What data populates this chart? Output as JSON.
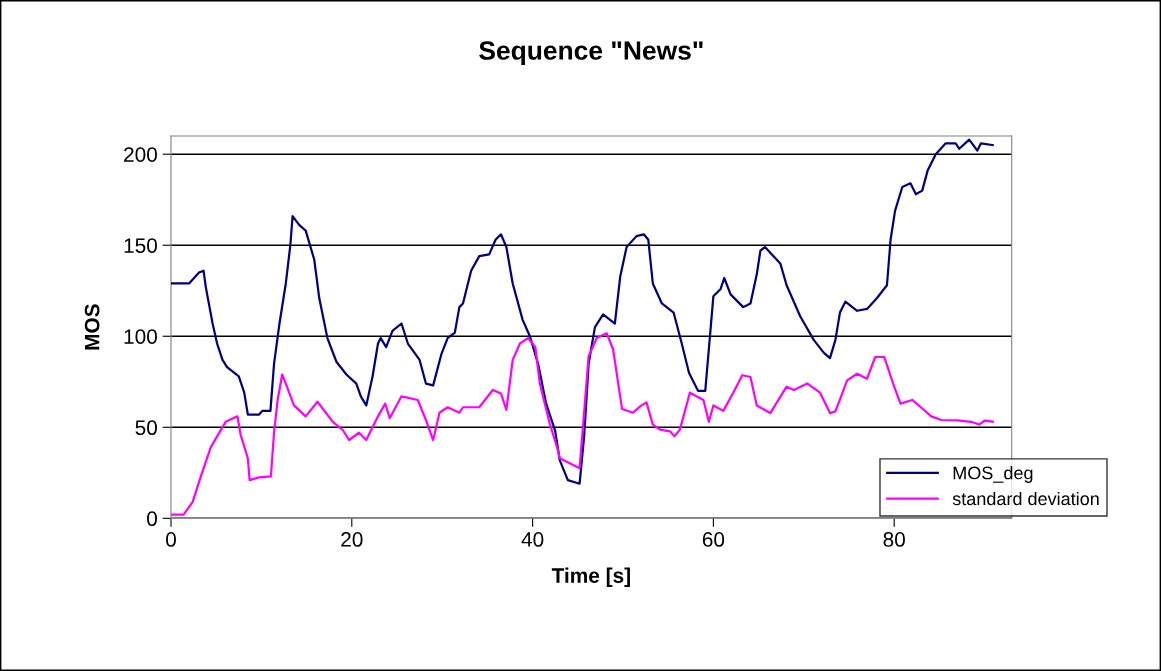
{
  "chart_data": {
    "type": "line",
    "title": "Sequence \"News\"",
    "xlabel": "Time [s]",
    "ylabel": "MOS",
    "xlim": [
      0,
      93
    ],
    "xticks": [
      0,
      20,
      40,
      60,
      80
    ],
    "ylim": [
      0,
      210
    ],
    "yticks": [
      0,
      50,
      100,
      150,
      200
    ],
    "grid": "y",
    "legend": "bottom right",
    "marker": "none",
    "line_style": "solid",
    "series": [
      {
        "name": "MOS_deg",
        "color": "#000080",
        "x": [
          0,
          2.0,
          3.1,
          3.6,
          3.85,
          4.6,
          5.1,
          5.7,
          6.2,
          7.5,
          8.1,
          8.5,
          9.75,
          10.1,
          11.0,
          11.4,
          12.0,
          12.7,
          13.2,
          13.45,
          14.2,
          14.9,
          15.85,
          16.4,
          17.3,
          18.3,
          19.4,
          20.5,
          21.0,
          21.6,
          22.3,
          22.9,
          23.2,
          23.8,
          24.5,
          25.5,
          26.2,
          27.5,
          28.2,
          29.0,
          29.9,
          30.6,
          31.4,
          31.9,
          32.3,
          33.2,
          34.1,
          35.2,
          35.9,
          36.5,
          37.1,
          37.8,
          38.9,
          39.7,
          40.6,
          41.5,
          42.5,
          43.0,
          43.9,
          45.2,
          45.7,
          46.2,
          46.9,
          47.8,
          49.1,
          49.7,
          50.4,
          51.5,
          52.3,
          52.8,
          53.3,
          54.3,
          55.6,
          56.5,
          57.3,
          58.3,
          59.1,
          60.0,
          60.8,
          61.2,
          61.9,
          63.3,
          64.1,
          64.8,
          65.2,
          65.7,
          67.4,
          68.1,
          69.6,
          71.1,
          72.2,
          72.9,
          73.5,
          74.0,
          74.6,
          75.9,
          77.0,
          78.1,
          79.2,
          79.6,
          80.1,
          80.9,
          81.8,
          82.4,
          83.1,
          83.7,
          84.6,
          85.7,
          86.8,
          87.2,
          88.3,
          89.2,
          89.6,
          90.9
        ],
        "values": [
          129,
          129,
          135,
          136,
          127,
          107,
          96,
          87,
          83,
          78,
          69,
          57,
          57,
          59,
          59,
          85,
          107,
          129,
          150,
          166,
          161,
          158,
          142,
          121,
          99,
          86,
          79,
          74,
          67,
          62,
          78,
          96,
          99,
          94,
          103,
          107,
          96,
          87,
          74,
          73,
          90,
          99,
          102,
          116,
          118,
          136,
          144,
          145,
          153,
          156,
          149,
          129,
          109,
          100,
          85,
          63,
          48,
          32,
          21,
          19,
          45,
          85,
          105,
          112,
          107,
          133,
          149,
          155,
          156,
          153,
          129,
          118,
          113,
          96,
          80,
          70,
          70,
          122,
          126,
          132,
          123,
          116,
          118,
          134,
          147,
          149,
          140,
          128,
          111,
          98,
          91,
          88,
          98,
          113,
          119,
          114,
          115,
          121,
          128,
          153,
          169,
          182,
          184,
          178,
          180,
          191,
          200,
          206,
          206,
          203,
          208,
          202,
          206,
          205
        ]
      },
      {
        "name": "standard deviation",
        "color": "#ff00ff",
        "x": [
          0,
          1.4,
          2.4,
          3.3,
          4.4,
          5.1,
          6.05,
          7.35,
          7.7,
          8.5,
          8.7,
          9.75,
          11.05,
          11.4,
          11.8,
          12.3,
          12.7,
          13.6,
          14.9,
          16.2,
          17.9,
          19.0,
          19.7,
          20.8,
          21.6,
          22.9,
          23.7,
          24.2,
          25.5,
          27.3,
          28.2,
          29.0,
          29.7,
          30.6,
          31.9,
          32.3,
          34.1,
          35.6,
          36.5,
          37.1,
          37.8,
          38.6,
          39.5,
          40.3,
          40.8,
          41.9,
          42.8,
          43.0,
          45.2,
          45.6,
          46.2,
          47.1,
          48.2,
          48.9,
          49.9,
          51.1,
          51.9,
          52.6,
          53.3,
          54.1,
          55.2,
          55.7,
          56.3,
          57.4,
          58.9,
          59.5,
          60.0,
          61.1,
          62.2,
          63.2,
          64.1,
          64.8,
          66.3,
          67.4,
          68.1,
          68.9,
          70.4,
          71.8,
          72.9,
          73.5,
          74.8,
          75.9,
          77.0,
          77.9,
          78.9,
          80.0,
          80.7,
          82.0,
          83.3,
          84.1,
          85.2,
          87.0,
          88.5,
          89.4,
          90.0,
          90.9
        ],
        "values": [
          2,
          2,
          9,
          23,
          39,
          45,
          53,
          56,
          46,
          33,
          21,
          22.5,
          23,
          47,
          65,
          79,
          74,
          62,
          56,
          64,
          53,
          48.5,
          43,
          47,
          43,
          56,
          63,
          55,
          67,
          65,
          54,
          43,
          58,
          61,
          58,
          61,
          61,
          70.5,
          68.6,
          59.5,
          87,
          96,
          99,
          94,
          74,
          52,
          37.5,
          33,
          27.5,
          52,
          89,
          99,
          101.6,
          93,
          60,
          58,
          61.5,
          63.7,
          51.5,
          48.7,
          47.8,
          45,
          48.7,
          69,
          65,
          53,
          62,
          59,
          69,
          78.6,
          77.6,
          62,
          57.8,
          66.7,
          72.3,
          70.5,
          74,
          69,
          57.8,
          58.7,
          75.8,
          79.4,
          76.7,
          88.6,
          88.6,
          72.3,
          63,
          65,
          59.5,
          56,
          54,
          53.8,
          53,
          51.5,
          53.6,
          53
        ]
      }
    ]
  }
}
